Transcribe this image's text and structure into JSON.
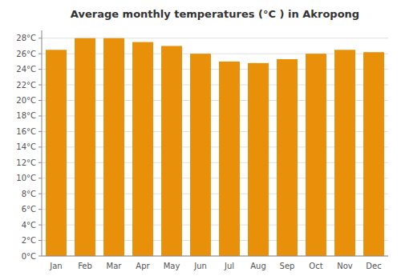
{
  "chart_data": {
    "type": "bar",
    "title": "Average monthly temperatures (°C ) in Akropong",
    "categories": [
      "Jan",
      "Feb",
      "Mar",
      "Apr",
      "May",
      "Jun",
      "Jul",
      "Aug",
      "Sep",
      "Oct",
      "Nov",
      "Dec"
    ],
    "values": [
      26.5,
      28.0,
      28.0,
      27.5,
      27.0,
      26.0,
      25.0,
      24.8,
      25.3,
      26.0,
      26.5,
      26.2
    ],
    "color": "#E8900A",
    "ylim": [
      0,
      29
    ],
    "yticks": [
      {
        "value": 0,
        "label": "0°C"
      },
      {
        "value": 2,
        "label": "2°C"
      },
      {
        "value": 4,
        "label": "4°C"
      },
      {
        "value": 6,
        "label": "6°C"
      },
      {
        "value": 8,
        "label": "8°C"
      },
      {
        "value": 10,
        "label": "10°C"
      },
      {
        "value": 12,
        "label": "12°C"
      },
      {
        "value": 14,
        "label": "14°C"
      },
      {
        "value": 16,
        "label": "16°C"
      },
      {
        "value": 18,
        "label": "18°C"
      },
      {
        "value": 20,
        "label": "20°C"
      },
      {
        "value": 22,
        "label": "22°C"
      },
      {
        "value": 24,
        "label": "24°C"
      },
      {
        "value": 26,
        "label": "26°C"
      },
      {
        "value": 28,
        "label": "28°C"
      }
    ],
    "grid": true
  }
}
